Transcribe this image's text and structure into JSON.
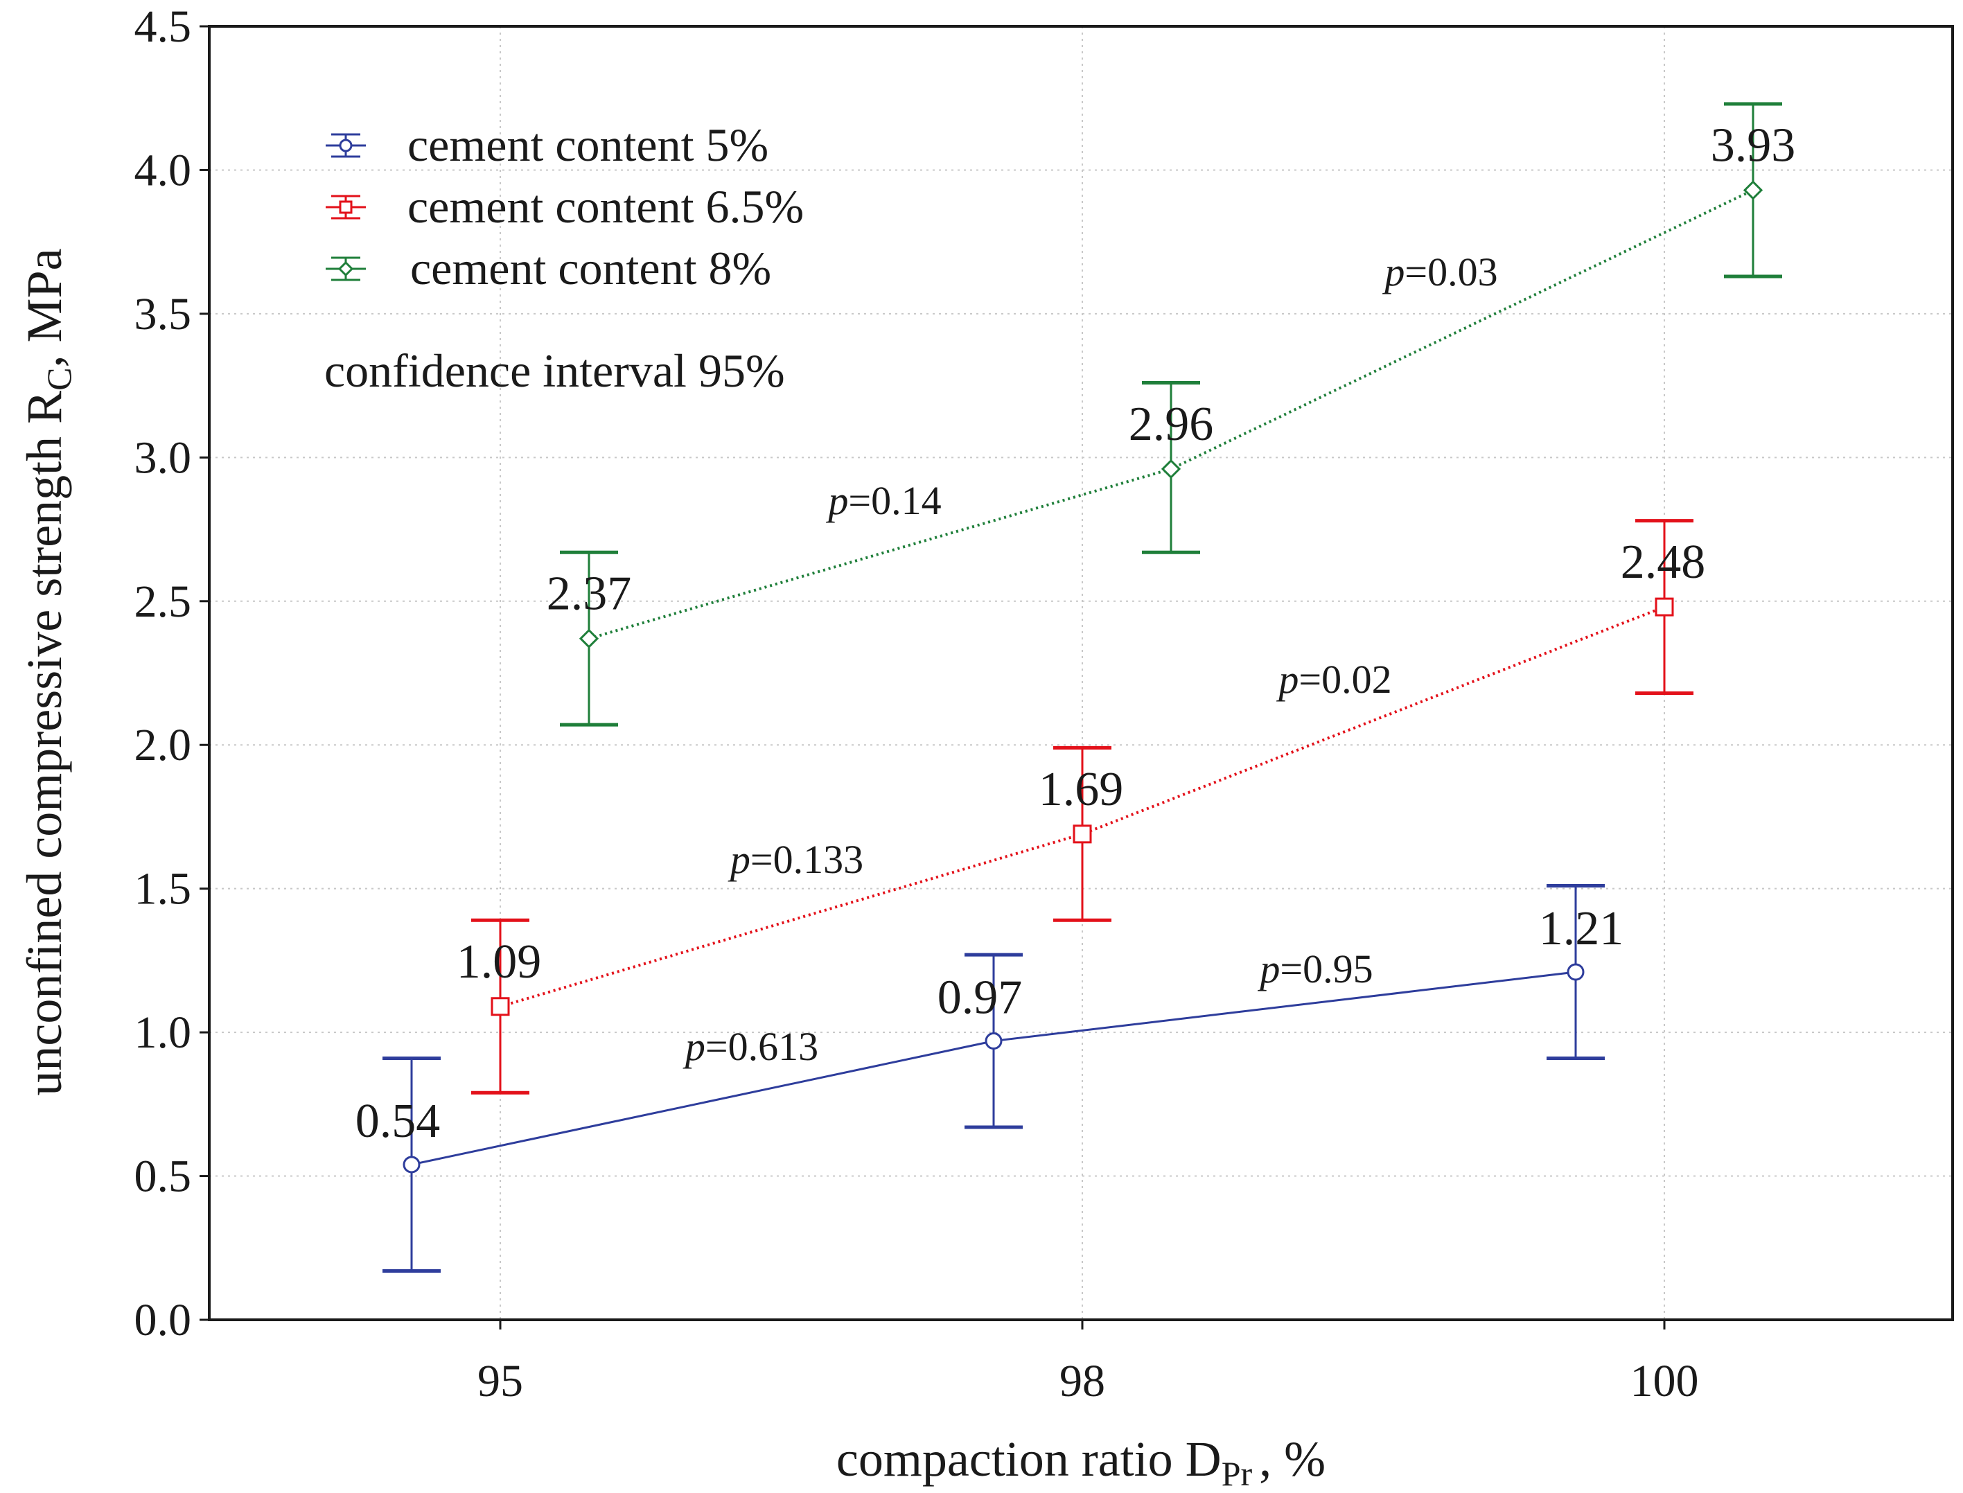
{
  "chart_data": {
    "type": "line",
    "title": "",
    "xlabel": "compaction ratio D",
    "xlabel_subscript": "Pr",
    "xlabel_suffix": ", %",
    "ylabel": "unconfined compressive strength R",
    "ylabel_subscript": "C",
    "ylabel_suffix": ", MPa",
    "categories": [
      "95",
      "98",
      "100"
    ],
    "ylim": [
      0.0,
      4.5
    ],
    "yticks": [
      "0.0",
      "0.5",
      "1.0",
      "1.5",
      "2.0",
      "2.5",
      "3.0",
      "3.5",
      "4.0",
      "4.5"
    ],
    "grid": true,
    "legend_position": "top-left",
    "confidence_note": "confidence interval 95%",
    "series": [
      {
        "name": "cement content 5%",
        "color": "#2e3d9c",
        "marker": "circle",
        "line": "solid",
        "values": [
          0.54,
          0.97,
          1.21
        ],
        "value_labels": [
          "0.54",
          "0.97",
          "1.21"
        ],
        "ci_low": [
          0.17,
          0.67,
          0.91
        ],
        "ci_high": [
          0.91,
          1.27,
          1.51
        ],
        "p_values": [
          {
            "between": [
              0,
              1
            ],
            "text": "=0.613"
          },
          {
            "between": [
              1,
              2
            ],
            "text": "=0.95"
          }
        ]
      },
      {
        "name": "cement content 6.5%",
        "color": "#e3111a",
        "marker": "square",
        "line": "dotted",
        "values": [
          1.09,
          1.69,
          2.48
        ],
        "value_labels": [
          "1.09",
          "1.69",
          "2.48"
        ],
        "ci_low": [
          0.79,
          1.39,
          2.18
        ],
        "ci_high": [
          1.39,
          1.99,
          2.78
        ],
        "p_values": [
          {
            "between": [
              0,
              1
            ],
            "text": "=0.133"
          },
          {
            "between": [
              1,
              2
            ],
            "text": "=0.02"
          }
        ]
      },
      {
        "name": "cement content 8%",
        "color": "#1f7f3a",
        "marker": "diamond",
        "line": "dotted",
        "values": [
          2.37,
          2.96,
          3.93
        ],
        "value_labels": [
          "2.37",
          "2.96",
          "3.93"
        ],
        "ci_low": [
          2.07,
          2.67,
          3.63
        ],
        "ci_high": [
          2.67,
          3.26,
          4.23
        ],
        "p_values": [
          {
            "between": [
              0,
              1
            ],
            "text": "=0.14"
          },
          {
            "between": [
              1,
              2
            ],
            "text": "=0.03"
          }
        ]
      }
    ],
    "p_prefix": "p"
  }
}
